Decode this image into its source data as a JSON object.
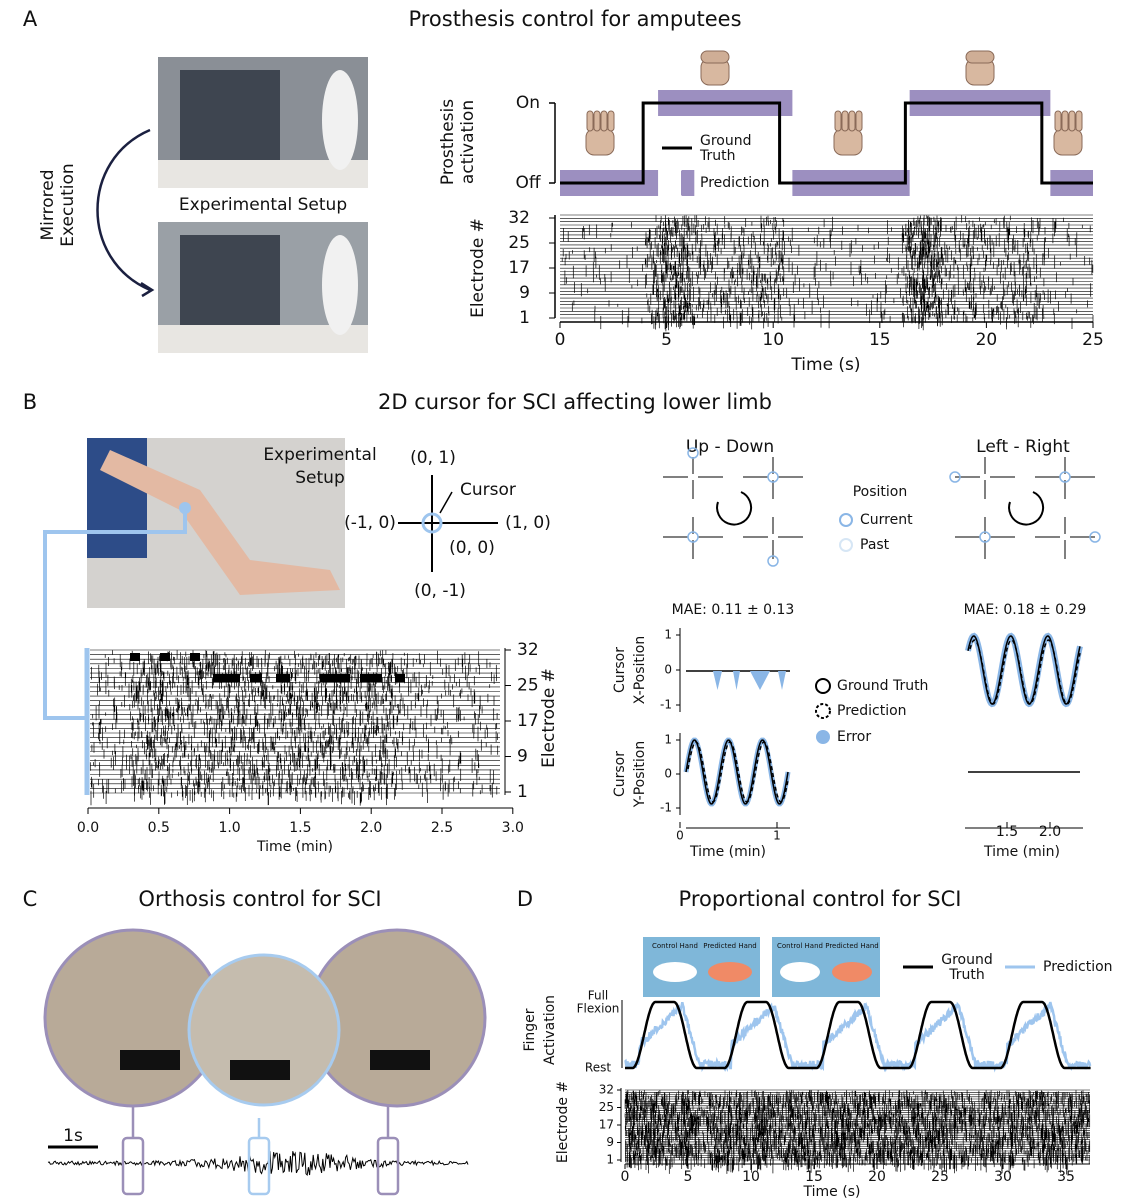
{
  "panels": {
    "a": {
      "label": "A",
      "title": "Prosthesis control for amputees",
      "setup_label": "Experimental Setup",
      "mirror_label": [
        "Mirrored",
        "Execution"
      ],
      "ylabel": [
        "Prosthesis",
        "activation"
      ],
      "yticks": [
        "On",
        "Off"
      ],
      "legend_truth": [
        "Ground",
        "Truth"
      ],
      "legend_pred": "Prediction",
      "raster_ylabel": "Electrode #",
      "raster_yticks": [
        "32",
        "25",
        "17",
        "9",
        "1"
      ],
      "xticks": [
        "0",
        "5",
        "10",
        "15",
        "20",
        "25"
      ],
      "xlabel": "Time (s)"
    },
    "b": {
      "label": "B",
      "title": "2D cursor for SCI affecting lower limb",
      "setup_label": [
        "Experimental",
        "Setup"
      ],
      "cursor_labels": {
        "top": "(0, 1)",
        "cursor": "Cursor",
        "left": "(-1, 0)",
        "right": "(1, 0)",
        "center": "(0, 0)",
        "bottom": "(0, -1)"
      },
      "raster_yticks": [
        "32",
        "25",
        "17",
        "9",
        "1"
      ],
      "raster_ylabel": "Electrode #",
      "xticks": [
        "0.0",
        "0.5",
        "1.0",
        "1.5",
        "2.0",
        "2.5",
        "3.0"
      ],
      "xlabel": "Time (min)",
      "up_down": "Up - Down",
      "left_right": "Left - Right",
      "position_legend": {
        "title": "Position",
        "current": "Current",
        "past": "Past"
      },
      "mae_left": "MAE: 0.11 ± 0.13",
      "mae_right": "MAE: 0.18 ± 0.29",
      "x_ylabel": [
        "Cursor",
        "X-Position"
      ],
      "y_ylabel": [
        "Cursor",
        "Y-Position"
      ],
      "small_yticks": [
        "1",
        "0",
        "-1"
      ],
      "left_xticks": [
        "0",
        "1"
      ],
      "right_xticks": [
        "1.5",
        "2.0"
      ],
      "small_xlabel": "Time (min)",
      "legend": {
        "truth": "Ground Truth",
        "pred": "Prediction",
        "error": "Error"
      }
    },
    "c": {
      "label": "C",
      "title": "Orthosis control for SCI",
      "scale": "1s"
    },
    "d": {
      "label": "D",
      "title": "Proportional control for SCI",
      "screen_labels": [
        "Control Hand",
        "Predicted Hand"
      ],
      "legend_truth": [
        "Ground",
        "Truth"
      ],
      "legend_pred": "Prediction",
      "ylabel": [
        "Finger",
        "Activation"
      ],
      "ytick_full": [
        "Full",
        "Flexion"
      ],
      "ytick_rest": "Rest",
      "raster_ylabel": "Electrode #",
      "raster_yticks": [
        "32",
        "25",
        "17",
        "9",
        "1"
      ],
      "xticks": [
        "0",
        "5",
        "10",
        "15",
        "20",
        "25",
        "30",
        "35"
      ],
      "xlabel": "Time (s)"
    }
  }
}
